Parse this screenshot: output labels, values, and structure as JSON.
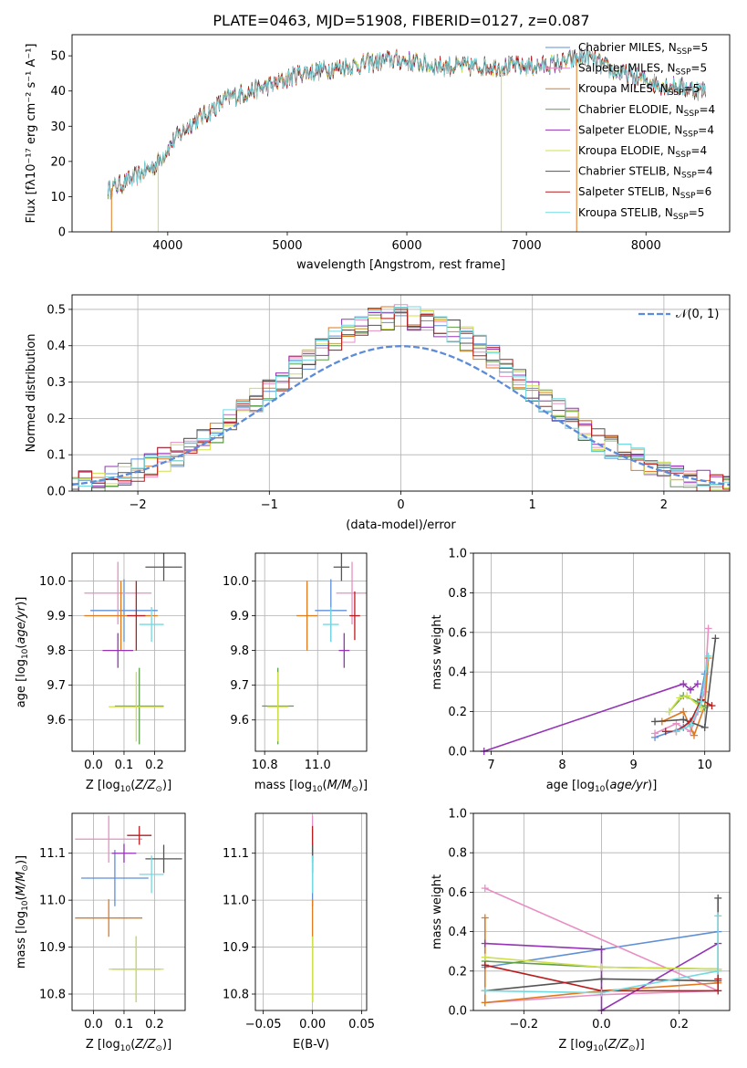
{
  "figure": {
    "title": "PLATE=0463, MJD=51908, FIBERID=0127, z=0.087"
  },
  "colors": {
    "Chabrier MILES": "#5f8fd6",
    "Salpeter MILES": "#e88fc3",
    "Kroupa MILES": "#e07a1f",
    "Chabrier ELODIE": "#5e9e4a",
    "Salpeter ELODIE": "#9433b5",
    "Kroupa ELODIE": "#cfe04a",
    "Chabrier STELIB": "#555555",
    "Salpeter STELIB": "#b81c1c",
    "Kroupa STELIB": "#72d9e0",
    "normal": "#5b8bd9",
    "grid": "#b0b0b0"
  },
  "chart_data": [
    {
      "id": "spectrum",
      "type": "line",
      "title": "PLATE=0463, MJD=51908, FIBERID=0127, z=0.087",
      "xlabel": "wavelength [Angstrom, rest frame]",
      "ylabel": "Flux [f_λ 10^-17 erg cm^-2 s^-1 A^-1]",
      "xlim": [
        3200,
        8700
      ],
      "ylim": [
        0,
        56
      ],
      "xticks": [
        4000,
        5000,
        6000,
        7000,
        8000
      ],
      "yticks": [
        0,
        10,
        20,
        30,
        40,
        50
      ],
      "grid": false,
      "legend_position": "top-right",
      "legend": [
        "Chabrier MILES, N_SSP=5",
        "Salpeter MILES, N_SSP=5",
        "Kroupa MILES, N_SSP=5",
        "Chabrier ELODIE, N_SSP=4",
        "Salpeter ELODIE, N_SSP=4",
        "Kroupa ELODIE, N_SSP=4",
        "Chabrier STELIB, N_SSP=4",
        "Salpeter STELIB, N_SSP=6",
        "Kroupa STELIB, N_SSP=5"
      ],
      "continuum": [
        [
          3500,
          12
        ],
        [
          3700,
          15
        ],
        [
          3900,
          19
        ],
        [
          4050,
          26
        ],
        [
          4200,
          31
        ],
        [
          4300,
          33
        ],
        [
          4500,
          38
        ],
        [
          4700,
          40
        ],
        [
          4900,
          42
        ],
        [
          5100,
          45
        ],
        [
          5300,
          46
        ],
        [
          5500,
          47
        ],
        [
          5700,
          48
        ],
        [
          5900,
          49
        ],
        [
          6100,
          48
        ],
        [
          6300,
          47
        ],
        [
          6500,
          47
        ],
        [
          6700,
          47
        ],
        [
          6900,
          47
        ],
        [
          7100,
          47
        ],
        [
          7300,
          48
        ],
        [
          7500,
          50
        ],
        [
          7700,
          46
        ],
        [
          7900,
          44
        ],
        [
          8100,
          42
        ],
        [
          8300,
          41
        ],
        [
          8500,
          40
        ]
      ]
    },
    {
      "id": "residuals",
      "type": "bar",
      "xlabel": "(data-model)/error",
      "ylabel": "Normed distribution",
      "xlim": [
        -2.5,
        2.5
      ],
      "ylim": [
        0,
        0.54
      ],
      "xticks": [
        -2,
        -1,
        0,
        1,
        2
      ],
      "yticks": [
        0.0,
        0.1,
        0.2,
        0.3,
        0.4,
        0.5
      ],
      "grid": true,
      "legend_position": "top-right",
      "legend": [
        "𝒩(0, 1)"
      ],
      "bin_width": 0.1
    },
    {
      "id": "age-vs-Z",
      "type": "scatter",
      "xlabel": "Z [log10(Z/Z⊙)]",
      "ylabel": "age  [log10(age/yr)]",
      "xlim": [
        -0.07,
        0.3
      ],
      "ylim": [
        9.51,
        10.08
      ],
      "xticks": [
        0.0,
        0.1,
        0.2
      ],
      "yticks": [
        9.6,
        9.7,
        9.8,
        9.9,
        10.0
      ],
      "grid": true,
      "points": [
        {
          "model": "Chabrier MILES",
          "x": 0.1,
          "y": 9.915,
          "xerr": 0.11,
          "yerr": 0.09
        },
        {
          "model": "Salpeter MILES",
          "x": 0.08,
          "y": 9.965,
          "xerr": 0.11,
          "yerr": 0.09
        },
        {
          "model": "Kroupa MILES",
          "x": 0.09,
          "y": 9.9,
          "xerr": 0.12,
          "yerr": 0.1
        },
        {
          "model": "Chabrier ELODIE",
          "x": 0.15,
          "y": 9.64,
          "xerr": 0.08,
          "yerr": 0.11
        },
        {
          "model": "Salpeter ELODIE",
          "x": 0.08,
          "y": 9.8,
          "xerr": 0.05,
          "yerr": 0.05
        },
        {
          "model": "Kroupa ELODIE",
          "x": 0.14,
          "y": 9.638,
          "xerr": 0.09,
          "yerr": 0.1
        },
        {
          "model": "Chabrier STELIB",
          "x": 0.23,
          "y": 10.04,
          "xerr": 0.06,
          "yerr": 0.04
        },
        {
          "model": "Salpeter STELIB",
          "x": 0.14,
          "y": 9.9,
          "xerr": 0.03,
          "yerr": 0.1
        },
        {
          "model": "Kroupa STELIB",
          "x": 0.19,
          "y": 9.875,
          "xerr": 0.04,
          "yerr": 0.05
        }
      ]
    },
    {
      "id": "age-vs-mass",
      "type": "scatter",
      "xlabel": "mass [log10(M/M⊙)]",
      "ylabel": "",
      "xlim": [
        10.765,
        11.185
      ],
      "ylim": [
        9.51,
        10.08
      ],
      "xticks": [
        10.8,
        11.0
      ],
      "yticks": [
        9.6,
        9.7,
        9.8,
        9.9,
        10.0
      ],
      "grid": true,
      "points": [
        {
          "model": "Chabrier MILES",
          "x": 11.05,
          "y": 9.915,
          "xerr": 0.06,
          "yerr": 0.09
        },
        {
          "model": "Salpeter MILES",
          "x": 11.13,
          "y": 9.965,
          "xerr": 0.06,
          "yerr": 0.09
        },
        {
          "model": "Kroupa MILES",
          "x": 10.96,
          "y": 9.9,
          "xerr": 0.04,
          "yerr": 0.1
        },
        {
          "model": "Chabrier ELODIE",
          "x": 10.85,
          "y": 9.64,
          "xerr": 0.06,
          "yerr": 0.11
        },
        {
          "model": "Salpeter ELODIE",
          "x": 11.1,
          "y": 9.8,
          "xerr": 0.02,
          "yerr": 0.05
        },
        {
          "model": "Kroupa ELODIE",
          "x": 10.85,
          "y": 9.638,
          "xerr": 0.04,
          "yerr": 0.1
        },
        {
          "model": "Chabrier STELIB",
          "x": 11.09,
          "y": 10.04,
          "xerr": 0.03,
          "yerr": 0.04
        },
        {
          "model": "Salpeter STELIB",
          "x": 11.14,
          "y": 9.9,
          "xerr": 0.02,
          "yerr": 0.07
        },
        {
          "model": "Kroupa STELIB",
          "x": 11.05,
          "y": 9.875,
          "xerr": 0.03,
          "yerr": 0.05
        }
      ]
    },
    {
      "id": "weight-vs-age",
      "type": "line",
      "xlabel": "age  [log10(age/yr)]",
      "ylabel": "mass weight",
      "xlim": [
        6.75,
        10.35
      ],
      "ylim": [
        0,
        1
      ],
      "xticks": [
        7,
        8,
        9,
        10
      ],
      "yticks": [
        0.0,
        0.2,
        0.4,
        0.6,
        0.8,
        1.0
      ],
      "grid": true,
      "series": [
        {
          "model": "Chabrier MILES",
          "points": [
            [
              9.3,
              0.07
            ],
            [
              9.7,
              0.12
            ],
            [
              9.9,
              0.2
            ],
            [
              10.0,
              0.39
            ]
          ]
        },
        {
          "model": "Salpeter MILES",
          "points": [
            [
              9.3,
              0.09
            ],
            [
              9.6,
              0.14
            ],
            [
              9.8,
              0.1
            ],
            [
              10.0,
              0.3
            ],
            [
              10.05,
              0.62
            ]
          ]
        },
        {
          "model": "Kroupa MILES",
          "points": [
            [
              9.4,
              0.15
            ],
            [
              9.7,
              0.2
            ],
            [
              9.85,
              0.08
            ],
            [
              10.0,
              0.23
            ],
            [
              10.05,
              0.47
            ]
          ]
        },
        {
          "model": "Chabrier ELODIE",
          "points": [
            [
              9.5,
              0.2
            ],
            [
              9.7,
              0.28
            ],
            [
              9.9,
              0.25
            ],
            [
              10.0,
              0.22
            ]
          ]
        },
        {
          "model": "Salpeter ELODIE",
          "points": [
            [
              6.9,
              0.0
            ],
            [
              9.7,
              0.34
            ],
            [
              9.8,
              0.31
            ],
            [
              9.9,
              0.34
            ]
          ]
        },
        {
          "model": "Kroupa ELODIE",
          "points": [
            [
              9.5,
              0.2
            ],
            [
              9.65,
              0.27
            ],
            [
              9.75,
              0.28
            ],
            [
              9.95,
              0.22
            ]
          ]
        },
        {
          "model": "Chabrier STELIB",
          "points": [
            [
              9.3,
              0.15
            ],
            [
              9.7,
              0.16
            ],
            [
              10.0,
              0.12
            ],
            [
              10.15,
              0.57
            ]
          ]
        },
        {
          "model": "Salpeter STELIB",
          "points": [
            [
              9.45,
              0.1
            ],
            [
              9.6,
              0.1
            ],
            [
              9.8,
              0.15
            ],
            [
              9.95,
              0.26
            ],
            [
              10.1,
              0.23
            ]
          ]
        },
        {
          "model": "Kroupa STELIB",
          "points": [
            [
              9.6,
              0.1
            ],
            [
              9.8,
              0.13
            ],
            [
              9.95,
              0.25
            ],
            [
              10.05,
              0.48
            ]
          ]
        }
      ]
    },
    {
      "id": "mass-vs-Z",
      "type": "scatter",
      "xlabel": "Z [log10(Z/Z⊙)]",
      "ylabel": "mass [log10(M/M⊙)]",
      "xlim": [
        -0.07,
        0.3
      ],
      "ylim": [
        10.765,
        11.185
      ],
      "xticks": [
        0.0,
        0.1,
        0.2
      ],
      "yticks": [
        10.8,
        10.9,
        11.0,
        11.1
      ],
      "grid": true,
      "points": [
        {
          "model": "Chabrier MILES",
          "x": 0.07,
          "y": 11.047,
          "xerr": 0.11,
          "yerr": 0.06
        },
        {
          "model": "Salpeter MILES",
          "x": 0.05,
          "y": 11.13,
          "xerr": 0.11,
          "yerr": 0.05
        },
        {
          "model": "Kroupa MILES",
          "x": 0.05,
          "y": 10.962,
          "xerr": 0.11,
          "yerr": 0.04
        },
        {
          "model": "Chabrier ELODIE",
          "x": 0.14,
          "y": 10.853,
          "xerr": 0.08,
          "yerr": 0.07
        },
        {
          "model": "Salpeter ELODIE",
          "x": 0.1,
          "y": 11.1,
          "xerr": 0.04,
          "yerr": 0.02
        },
        {
          "model": "Kroupa ELODIE",
          "x": 0.14,
          "y": 10.853,
          "xerr": 0.09,
          "yerr": 0.07
        },
        {
          "model": "Chabrier STELIB",
          "x": 0.23,
          "y": 11.088,
          "xerr": 0.06,
          "yerr": 0.03
        },
        {
          "model": "Salpeter STELIB",
          "x": 0.15,
          "y": 11.138,
          "xerr": 0.04,
          "yerr": 0.02
        },
        {
          "model": "Kroupa STELIB",
          "x": 0.19,
          "y": 11.055,
          "xerr": 0.04,
          "yerr": 0.04
        }
      ]
    },
    {
      "id": "mass-vs-ebv",
      "type": "scatter",
      "xlabel": "E(B-V)",
      "ylabel": "",
      "xlim": [
        -0.058,
        0.055
      ],
      "ylim": [
        10.765,
        11.185
      ],
      "xticks": [
        -0.05,
        0.0,
        0.05
      ],
      "yticks": [
        10.8,
        10.9,
        11.0,
        11.1
      ],
      "grid": true,
      "points": [
        {
          "model": "Chabrier MILES",
          "x": 0.0,
          "y": 11.047,
          "xerr": 0.0,
          "yerr": 0.06
        },
        {
          "model": "Salpeter MILES",
          "x": 0.0,
          "y": 11.13,
          "xerr": 0.0,
          "yerr": 0.05
        },
        {
          "model": "Kroupa MILES",
          "x": 0.0,
          "y": 10.962,
          "xerr": 0.0,
          "yerr": 0.04
        },
        {
          "model": "Chabrier ELODIE",
          "x": 0.0,
          "y": 10.853,
          "xerr": 0.0,
          "yerr": 0.07
        },
        {
          "model": "Salpeter ELODIE",
          "x": 0.0,
          "y": 11.1,
          "xerr": 0.0,
          "yerr": 0.02
        },
        {
          "model": "Kroupa ELODIE",
          "x": 0.0,
          "y": 10.853,
          "xerr": 0.0,
          "yerr": 0.07
        },
        {
          "model": "Chabrier STELIB",
          "x": 0.0,
          "y": 11.088,
          "xerr": 0.0,
          "yerr": 0.03
        },
        {
          "model": "Salpeter STELIB",
          "x": 0.0,
          "y": 11.138,
          "xerr": 0.0,
          "yerr": 0.02
        },
        {
          "model": "Kroupa STELIB",
          "x": 0.0,
          "y": 11.055,
          "xerr": 0.0,
          "yerr": 0.04
        }
      ]
    },
    {
      "id": "weight-vs-Z",
      "type": "line",
      "xlabel": "Z [log10(Z/Z⊙)]",
      "ylabel": "mass weight",
      "xlim": [
        -0.33,
        0.33
      ],
      "ylim": [
        0,
        1
      ],
      "xticks": [
        -0.2,
        0.0,
        0.2
      ],
      "yticks": [
        0.0,
        0.2,
        0.4,
        0.6,
        0.8,
        1.0
      ],
      "grid": true,
      "series": [
        {
          "model": "Chabrier MILES",
          "points": [
            [
              -0.3,
              0.22
            ],
            [
              0.0,
              0.31
            ],
            [
              0.3,
              0.4
            ]
          ]
        },
        {
          "model": "Salpeter MILES",
          "points": [
            [
              -0.3,
              0.04
            ],
            [
              0.0,
              0.08
            ],
            [
              0.3,
              0.1
            ],
            [
              -0.3,
              0.62
            ]
          ]
        },
        {
          "model": "Kroupa MILES",
          "points": [
            [
              -0.3,
              0.47
            ],
            [
              -0.3,
              0.04
            ],
            [
              0.0,
              0.1
            ],
            [
              0.3,
              0.14
            ]
          ]
        },
        {
          "model": "Chabrier ELODIE",
          "points": [
            [
              -0.3,
              0.25
            ],
            [
              0.0,
              0.22
            ],
            [
              0.3,
              0.21
            ]
          ]
        },
        {
          "model": "Salpeter ELODIE",
          "points": [
            [
              -0.3,
              0.34
            ],
            [
              0.0,
              0.31
            ],
            [
              0.0,
              0.0
            ],
            [
              0.3,
              0.34
            ]
          ]
        },
        {
          "model": "Kroupa ELODIE",
          "points": [
            [
              -0.3,
              0.27
            ],
            [
              0.0,
              0.22
            ],
            [
              0.3,
              0.21
            ]
          ]
        },
        {
          "model": "Chabrier STELIB",
          "points": [
            [
              -0.3,
              0.1
            ],
            [
              0.0,
              0.16
            ],
            [
              0.3,
              0.15
            ],
            [
              0.3,
              0.57
            ]
          ]
        },
        {
          "model": "Salpeter STELIB",
          "points": [
            [
              -0.3,
              0.23
            ],
            [
              0.0,
              0.1
            ],
            [
              0.3,
              0.1
            ],
            [
              0.3,
              0.16
            ]
          ]
        },
        {
          "model": "Kroupa STELIB",
          "points": [
            [
              -0.3,
              0.1
            ],
            [
              0.0,
              0.09
            ],
            [
              0.3,
              0.2
            ],
            [
              0.3,
              0.48
            ]
          ]
        }
      ]
    }
  ]
}
